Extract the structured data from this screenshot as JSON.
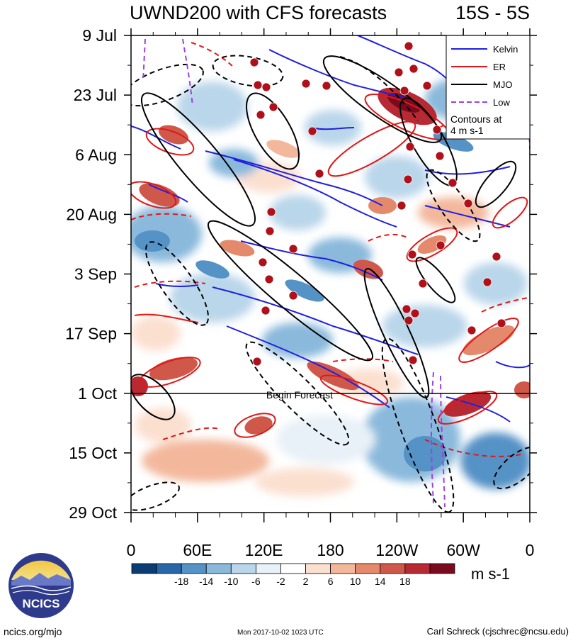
{
  "chart_data": {
    "type": "heatmap",
    "title": "UWND200 with CFS forecasts",
    "subtitle": "15S - 5S",
    "x_ticks": [
      "0",
      "60E",
      "120E",
      "180",
      "120W",
      "60W",
      "0"
    ],
    "y_ticks": [
      "9 Jul",
      "23 Jul",
      "6 Aug",
      "20 Aug",
      "3 Sep",
      "17 Sep",
      "1 Oct",
      "15 Oct",
      "29 Oct"
    ],
    "forecast_label": "Begin Forecast",
    "forecast_date": "1 Oct",
    "legend": {
      "items": [
        {
          "name": "Kelvin",
          "color": "#1f1fe0"
        },
        {
          "name": "ER",
          "color": "#e01818"
        },
        {
          "name": "MJO",
          "color": "#000000"
        },
        {
          "name": "Low",
          "color": "#a040e0"
        }
      ],
      "note": "Contours at\n4 m s-1"
    },
    "colorbar": {
      "labels": [
        "-18",
        "-14",
        "-10",
        "-6",
        "-2",
        "2",
        "6",
        "10",
        "14",
        "18"
      ],
      "units": "m s-1",
      "colors": [
        "#0b3c73",
        "#2a67a8",
        "#5592c6",
        "#8ab9dc",
        "#bad6ea",
        "#e8f1f7",
        "#ffffff",
        "#fbe0d0",
        "#f3b89c",
        "#e5896d",
        "#d0584a",
        "#b82a33",
        "#7a0a1e"
      ]
    }
  },
  "logo": {
    "text": "NCICS"
  },
  "footer": {
    "left": "ncics.org/mjo",
    "center": "Mon 2017-10-02 1023 UTC",
    "right": "Carl Schreck (cjschrec@ncsu.edu)"
  }
}
